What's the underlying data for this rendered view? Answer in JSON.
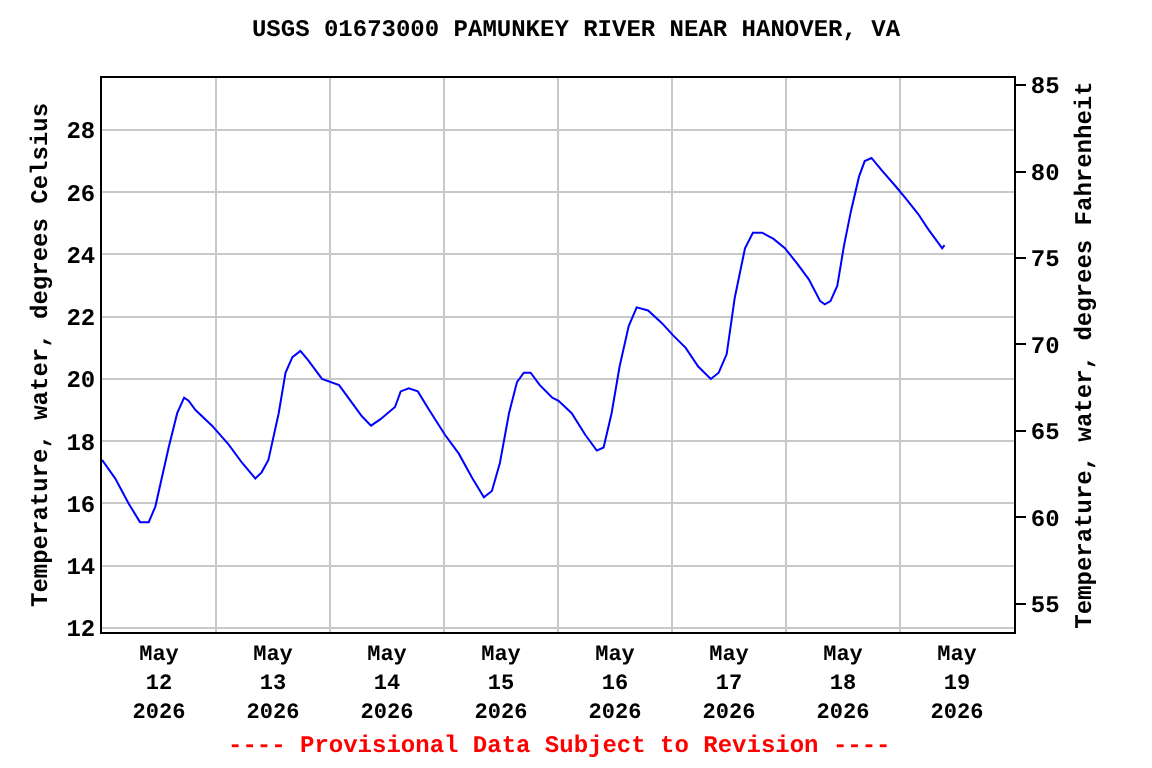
{
  "chart_data": {
    "type": "line",
    "title": "USGS 01673000 PAMUNKEY RIVER NEAR HANOVER, VA",
    "ylabel": "Temperature, water, degrees Celsius",
    "y2label": "Temperature, water, degrees Fahrenheit",
    "annotations": [
      "---- Provisional Data Subject to Revision ----"
    ],
    "x": [
      "2026-05-12T00:00",
      "2026-05-12T02:48",
      "2026-05-12T05:36",
      "2026-05-12T08:00",
      "2026-05-12T09:50",
      "2026-05-12T11:14",
      "2026-05-12T14:02",
      "2026-05-12T15:50",
      "2026-05-12T17:17",
      "2026-05-12T18:14",
      "2026-05-12T19:41",
      "2026-05-12T23:10",
      "2026-05-13T02:38",
      "2026-05-13T05:31",
      "2026-05-13T08:17",
      "2026-05-13T09:36",
      "2026-05-13T11:02",
      "2026-05-13T13:12",
      "2026-05-13T14:38",
      "2026-05-13T16:05",
      "2026-05-13T17:46",
      "2026-05-13T19:26",
      "2026-05-13T22:19",
      "2026-05-14T01:55",
      "2026-05-14T03:50",
      "2026-05-14T06:43",
      "2026-05-14T08:38",
      "2026-05-14T10:34",
      "2026-05-14T13:41",
      "2026-05-14T14:53",
      "2026-05-14T16:34",
      "2026-05-14T18:29",
      "2026-05-14T20:53",
      "2026-05-15T00:14",
      "2026-05-15T03:07",
      "2026-05-15T06:00",
      "2026-05-15T08:24",
      "2026-05-15T10:05",
      "2026-05-15T11:46",
      "2026-05-15T13:41",
      "2026-05-15T15:22",
      "2026-05-15T16:48",
      "2026-05-15T18:14",
      "2026-05-15T20:10",
      "2026-05-15T22:48",
      "2026-05-16T00:07",
      "2026-05-16T02:53",
      "2026-05-16T05:46",
      "2026-05-16T08:10",
      "2026-05-16T09:36",
      "2026-05-16T11:17",
      "2026-05-16T12:58",
      "2026-05-16T14:53",
      "2026-05-16T16:34",
      "2026-05-16T18:58",
      "2026-05-16T21:50",
      "2026-05-17T00:14",
      "2026-05-17T02:53",
      "2026-05-17T05:31",
      "2026-05-17T08:10",
      "2026-05-17T09:50",
      "2026-05-17T11:31",
      "2026-05-17T13:12",
      "2026-05-17T15:22",
      "2026-05-17T17:02",
      "2026-05-17T18:58",
      "2026-05-17T21:22",
      "2026-05-17T23:46",
      "2026-05-18T02:24",
      "2026-05-18T04:48",
      "2026-05-18T07:12",
      "2026-05-18T08:10",
      "2026-05-18T09:22",
      "2026-05-18T10:48",
      "2026-05-18T12:14",
      "2026-05-18T13:41",
      "2026-05-18T15:22",
      "2026-05-18T16:34",
      "2026-05-18T18:00",
      "2026-05-18T20:10",
      "2026-05-18T23:02",
      "2026-05-19T01:12",
      "2026-05-19T03:50",
      "2026-05-19T06:00",
      "2026-05-19T07:26",
      "2026-05-19T08:53",
      "2026-05-19T09:22"
    ],
    "series": [
      {
        "color": "#0000ff",
        "values": [
          17.4,
          16.8,
          16.0,
          15.4,
          15.4,
          15.9,
          17.8,
          18.9,
          19.4,
          19.3,
          19.0,
          18.5,
          17.9,
          17.3,
          16.8,
          17.0,
          17.4,
          18.9,
          20.2,
          20.7,
          20.9,
          20.6,
          20.0,
          19.8,
          19.4,
          18.8,
          18.5,
          18.7,
          19.1,
          19.6,
          19.7,
          19.6,
          19.0,
          18.2,
          17.6,
          16.8,
          16.2,
          16.4,
          17.3,
          18.9,
          19.9,
          20.2,
          20.2,
          19.8,
          19.4,
          19.3,
          18.9,
          18.2,
          17.7,
          17.8,
          18.9,
          20.4,
          21.7,
          22.3,
          22.2,
          21.8,
          21.4,
          21.0,
          20.4,
          20.0,
          20.2,
          20.8,
          22.6,
          24.2,
          24.7,
          24.7,
          24.5,
          24.2,
          23.7,
          23.2,
          22.5,
          22.4,
          22.5,
          23.0,
          24.3,
          25.4,
          26.5,
          27.0,
          27.1,
          26.7,
          26.2,
          25.8,
          25.3,
          24.8,
          24.5,
          24.2,
          24.3
        ]
      }
    ],
    "xlim": [
      "2026-05-12T00:00",
      "2026-05-20T00:00"
    ],
    "xticks": [
      {
        "value": "2026-05-12T00:00",
        "label": null
      },
      {
        "value": "2026-05-12T12:00",
        "label": "May\n12\n2026"
      },
      {
        "value": "2026-05-13T00:00",
        "label": null
      },
      {
        "value": "2026-05-13T12:00",
        "label": "May\n13\n2026"
      },
      {
        "value": "2026-05-14T00:00",
        "label": null
      },
      {
        "value": "2026-05-14T12:00",
        "label": "May\n14\n2026"
      },
      {
        "value": "2026-05-15T00:00",
        "label": null
      },
      {
        "value": "2026-05-15T12:00",
        "label": "May\n15\n2026"
      },
      {
        "value": "2026-05-16T00:00",
        "label": null
      },
      {
        "value": "2026-05-16T12:00",
        "label": "May\n16\n2026"
      },
      {
        "value": "2026-05-17T00:00",
        "label": null
      },
      {
        "value": "2026-05-17T12:00",
        "label": "May\n17\n2026"
      },
      {
        "value": "2026-05-18T00:00",
        "label": null
      },
      {
        "value": "2026-05-18T12:00",
        "label": "May\n18\n2026"
      },
      {
        "value": "2026-05-19T00:00",
        "label": null
      },
      {
        "value": "2026-05-19T12:00",
        "label": "May\n19\n2026"
      },
      {
        "value": "2026-05-20T00:00",
        "label": null
      }
    ],
    "ylim": [
      11.87,
      29.67
    ],
    "yticks": [
      12,
      14,
      16,
      18,
      20,
      22,
      24,
      26,
      28
    ],
    "y2lim": [
      53.37,
      85.41
    ],
    "y2ticks": [
      55,
      60,
      65,
      70,
      75,
      80,
      85
    ],
    "grid": true,
    "marker": "none",
    "line_style": "solid"
  }
}
